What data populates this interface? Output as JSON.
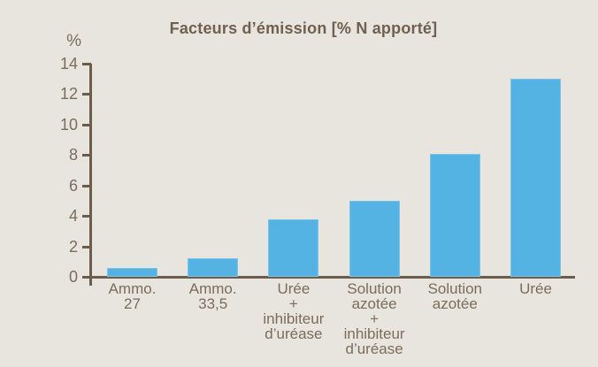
{
  "colors": {
    "background": "#e7e5de",
    "bar": "#55b3e4",
    "axis": "#6b5c4c",
    "tick_label": "#7c6c5c",
    "title": "#6f6050",
    "category_label": "#7c6c5c"
  },
  "chart_data": {
    "type": "bar",
    "title": "Facteurs d’émission [% N apporté]",
    "y_unit": "%",
    "xlabel": "",
    "ylabel": "%",
    "categories": [
      "Ammo. 27",
      "Ammo. 33,5",
      "Urée + inhibiteur d’uréase",
      "Solution azotée + inhibiteur d’uréase",
      "Solution azotée",
      "Urée"
    ],
    "category_lines": [
      [
        "Ammo.",
        "27"
      ],
      [
        "Ammo.",
        "33,5"
      ],
      [
        "Urée",
        "+",
        "inhibiteur",
        "d’uréase"
      ],
      [
        "Solution",
        "azotée",
        "+",
        "inhibiteur",
        "d’uréase"
      ],
      [
        "Solution",
        "azotée"
      ],
      [
        "Urée"
      ]
    ],
    "values": [
      0.6,
      1.2,
      3.8,
      5.0,
      8.1,
      13.0
    ],
    "ylim": [
      0,
      14
    ],
    "y_ticks": [
      0,
      2,
      4,
      6,
      8,
      10,
      12,
      14
    ],
    "grid": false,
    "legend": "none"
  }
}
